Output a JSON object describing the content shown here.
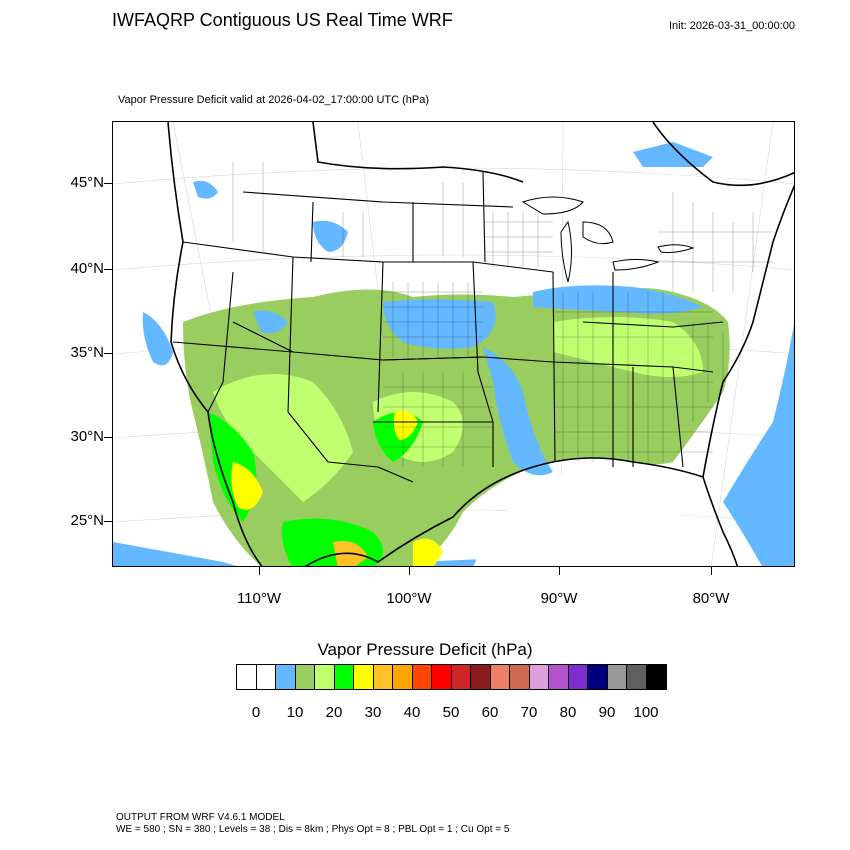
{
  "header": {
    "title": "IWFAQRP Contiguous US Real Time WRF",
    "init": "Init: 2026-03-31_00:00:00"
  },
  "map": {
    "valid_label": "Vapor Pressure Deficit valid at 2026-04-02_17:00:00 UTC   (hPa)",
    "lat_labels": [
      "45°N",
      "40°N",
      "35°N",
      "30°N",
      "25°N"
    ],
    "lon_labels": [
      "110°W",
      "100°W",
      "90°W",
      "80°W"
    ]
  },
  "colorbar": {
    "title": "Vapor Pressure Deficit  (hPa)",
    "colors": [
      "#ffffff",
      "#ffffff",
      "#63b8ff",
      "#9acd5f",
      "#c0ff70",
      "#00ff00",
      "#ffff00",
      "#ffc125",
      "#ffa500",
      "#ff4500",
      "#ff0000",
      "#cd2626",
      "#8b1a1a",
      "#ee7f67",
      "#cd6a50",
      "#dda0dd",
      "#b452cd",
      "#7b2dcd",
      "#000080",
      "#999999",
      "#5f5f5f",
      "#000000"
    ],
    "labels": [
      "0",
      "10",
      "20",
      "30",
      "40",
      "50",
      "60",
      "70",
      "80",
      "90",
      "100"
    ]
  },
  "footer": {
    "line1": "OUTPUT FROM WRF V4.6.1 MODEL",
    "line2": "WE = 580 ; SN = 380 ; Levels = 38 ; Dis = 8km ; Phys Opt = 8 ; PBL Opt = 1 ; Cu Opt = 5"
  }
}
